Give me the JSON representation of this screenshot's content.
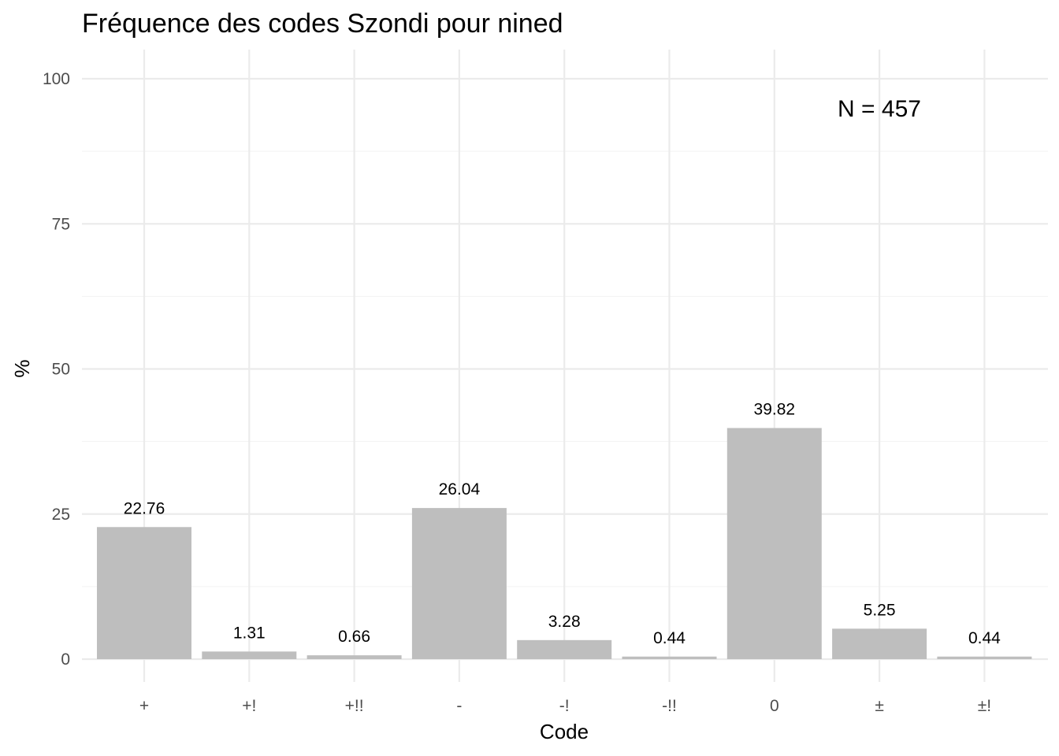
{
  "chart_data": {
    "type": "bar",
    "title": "Fréquence des codes Szondi pour nined",
    "xlabel": "Code",
    "ylabel": "%",
    "categories": [
      "+",
      "+!",
      "+!!",
      "-",
      "-!",
      "-!!",
      "0",
      "±",
      "±!"
    ],
    "values": [
      22.76,
      1.31,
      0.66,
      26.04,
      3.28,
      0.44,
      39.82,
      5.25,
      0.44
    ],
    "value_labels": [
      "22.76",
      "1.31",
      "0.66",
      "26.04",
      "3.28",
      "0.44",
      "39.82",
      "5.25",
      "0.44"
    ],
    "yticks": [
      0,
      25,
      50,
      75,
      100
    ],
    "ytick_labels": [
      "0",
      "25",
      "50",
      "75",
      "100"
    ],
    "ylim": [
      0,
      100
    ],
    "grid": true,
    "annotation": "N = 457",
    "bar_color": "#bebebe"
  }
}
